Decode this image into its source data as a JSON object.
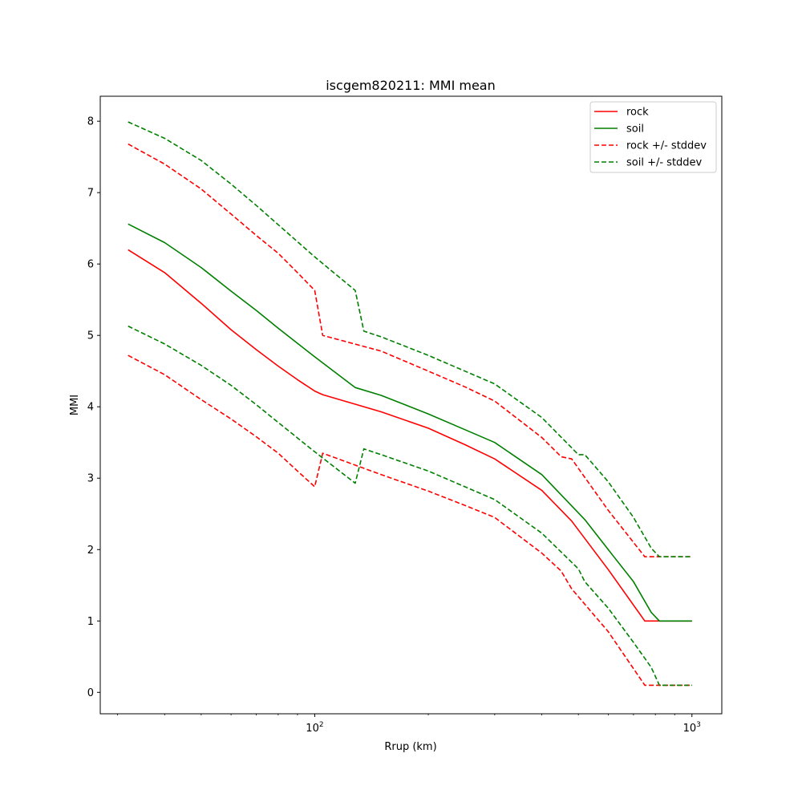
{
  "chart_data": {
    "type": "line",
    "title": "iscgem820211: MMI mean",
    "xlabel": "Rrup (km)",
    "ylabel": "MMI",
    "xscale": "log",
    "xlim": [
      27.0,
      1200.0
    ],
    "ylim": [
      -0.3,
      8.35
    ],
    "yticks": [
      "0",
      "1",
      "2",
      "3",
      "4",
      "5",
      "6",
      "7",
      "8"
    ],
    "xticks": [
      {
        "value": 100,
        "base": "10",
        "exp": "2"
      },
      {
        "value": 1000,
        "base": "10",
        "exp": "3"
      }
    ],
    "grid": false,
    "legend": "top-right",
    "series": [
      {
        "name": "rock",
        "color": "#ff0000",
        "style": "solid",
        "x": [
          32,
          40,
          50,
          60,
          70,
          80,
          90,
          100,
          105,
          120,
          150,
          200,
          250,
          300,
          400,
          480,
          600,
          750,
          800,
          900,
          1000
        ],
        "y": [
          6.2,
          5.88,
          5.45,
          5.08,
          4.8,
          4.57,
          4.38,
          4.22,
          4.17,
          4.08,
          3.93,
          3.7,
          3.47,
          3.27,
          2.83,
          2.4,
          1.72,
          1.0,
          1.0,
          1.0,
          1.0
        ]
      },
      {
        "name": "soil",
        "color": "#008000",
        "style": "solid",
        "x": [
          32,
          40,
          50,
          60,
          70,
          80,
          100,
          128,
          150,
          200,
          250,
          300,
          400,
          520,
          600,
          700,
          780,
          820,
          900,
          1000
        ],
        "y": [
          6.56,
          6.3,
          5.95,
          5.62,
          5.35,
          5.1,
          4.7,
          4.27,
          4.16,
          3.9,
          3.68,
          3.5,
          3.05,
          2.42,
          2.0,
          1.55,
          1.12,
          1.0,
          1.0,
          1.0
        ]
      },
      {
        "name": "rock +/- stddev",
        "color": "#ff0000",
        "style": "dashed",
        "x": [
          32,
          40,
          50,
          60,
          70,
          80,
          90,
          100,
          105,
          150,
          200,
          250,
          300,
          400,
          450,
          480,
          600,
          750,
          800,
          900,
          1000
        ],
        "y": [
          7.68,
          7.4,
          7.05,
          6.7,
          6.4,
          6.15,
          5.88,
          5.63,
          5.0,
          4.78,
          4.5,
          4.28,
          4.08,
          3.57,
          3.3,
          3.27,
          2.55,
          1.9,
          1.9,
          1.9,
          1.9
        ]
      },
      {
        "name": "",
        "color": "#ff0000",
        "style": "dashed",
        "x": [
          32,
          40,
          50,
          60,
          70,
          80,
          90,
          100,
          105,
          150,
          200,
          250,
          300,
          400,
          450,
          480,
          600,
          750,
          800,
          900,
          1000
        ],
        "y": [
          4.72,
          4.45,
          4.1,
          3.83,
          3.58,
          3.35,
          3.1,
          2.88,
          3.35,
          3.05,
          2.82,
          2.62,
          2.45,
          1.95,
          1.7,
          1.45,
          0.85,
          0.1,
          0.1,
          0.1,
          0.1
        ]
      },
      {
        "name": "soil +/- stddev",
        "color": "#008000",
        "style": "dashed",
        "x": [
          32,
          40,
          50,
          60,
          70,
          80,
          100,
          128,
          135,
          150,
          200,
          250,
          300,
          400,
          500,
          520,
          600,
          700,
          780,
          820,
          900,
          1000
        ],
        "y": [
          7.99,
          7.76,
          7.45,
          7.12,
          6.82,
          6.55,
          6.1,
          5.63,
          5.06,
          4.98,
          4.72,
          4.5,
          4.32,
          3.85,
          3.33,
          3.33,
          2.95,
          2.45,
          2.02,
          1.9,
          1.9,
          1.9
        ]
      },
      {
        "name": "",
        "color": "#008000",
        "style": "dashed",
        "x": [
          32,
          40,
          50,
          60,
          70,
          80,
          100,
          128,
          135,
          150,
          200,
          250,
          300,
          400,
          500,
          520,
          600,
          700,
          780,
          820,
          900,
          1000
        ],
        "y": [
          5.13,
          4.88,
          4.58,
          4.3,
          4.03,
          3.78,
          3.37,
          2.93,
          3.41,
          3.33,
          3.1,
          2.88,
          2.7,
          2.23,
          1.73,
          1.55,
          1.18,
          0.7,
          0.35,
          0.1,
          0.1,
          0.1
        ]
      }
    ]
  }
}
